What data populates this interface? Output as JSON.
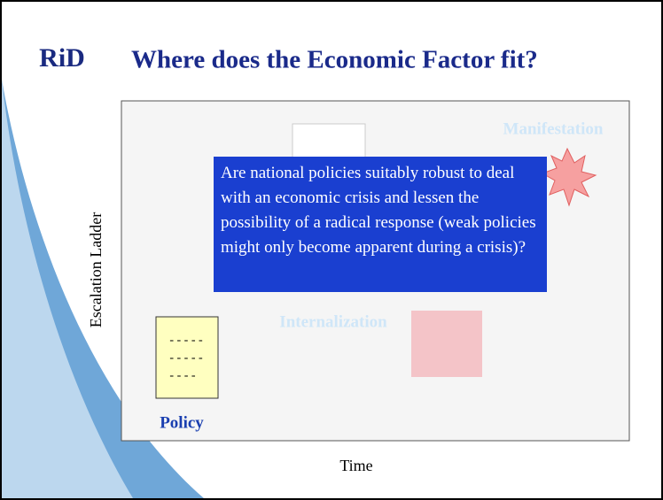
{
  "header": {
    "logo": "RiD",
    "title": "Where does the Economic Factor fit?"
  },
  "diagram": {
    "y_label": "Escalation Ladder",
    "x_label": "Time",
    "stages": [
      "Manifestation",
      "Internalization",
      "Policy"
    ],
    "callout": "Are national policies suitably robust to deal with an economic crisis and lessen the possibility of a radical response (weak policies might only become apparent during a crisis)?"
  }
}
